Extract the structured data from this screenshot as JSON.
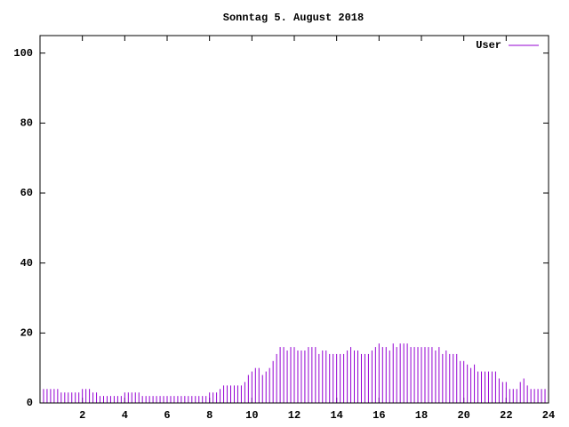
{
  "chart_data": {
    "type": "impulse",
    "title": "Sonntag 5. August 2018",
    "xlim": [
      0,
      24
    ],
    "xticks": [
      2,
      4,
      6,
      8,
      10,
      12,
      14,
      16,
      18,
      20,
      22,
      24
    ],
    "ylim": [
      0,
      105
    ],
    "yticks": [
      0,
      20,
      40,
      60,
      80,
      100
    ],
    "legend": "top-right",
    "series": [
      {
        "name": "User",
        "color": "#9400d3",
        "x": [
          0,
          0.167,
          0.333,
          0.5,
          0.667,
          0.833,
          1,
          1.167,
          1.333,
          1.5,
          1.667,
          1.833,
          2,
          2.167,
          2.333,
          2.5,
          2.667,
          2.833,
          3,
          3.167,
          3.333,
          3.5,
          3.667,
          3.833,
          4,
          4.167,
          4.333,
          4.5,
          4.667,
          4.833,
          5,
          5.167,
          5.333,
          5.5,
          5.667,
          5.833,
          6,
          6.167,
          6.333,
          6.5,
          6.667,
          6.833,
          7,
          7.167,
          7.333,
          7.5,
          7.667,
          7.833,
          8,
          8.167,
          8.333,
          8.5,
          8.667,
          8.833,
          9,
          9.167,
          9.333,
          9.5,
          9.667,
          9.833,
          10,
          10.167,
          10.333,
          10.5,
          10.667,
          10.833,
          11,
          11.167,
          11.333,
          11.5,
          11.667,
          11.833,
          12,
          12.167,
          12.333,
          12.5,
          12.667,
          12.833,
          13,
          13.167,
          13.333,
          13.5,
          13.667,
          13.833,
          14,
          14.167,
          14.333,
          14.5,
          14.667,
          14.833,
          15,
          15.167,
          15.333,
          15.5,
          15.667,
          15.833,
          16,
          16.167,
          16.333,
          16.5,
          16.667,
          16.833,
          17,
          17.167,
          17.333,
          17.5,
          17.667,
          17.833,
          18,
          18.167,
          18.333,
          18.5,
          18.667,
          18.833,
          19,
          19.167,
          19.333,
          19.5,
          19.667,
          19.833,
          20,
          20.167,
          20.333,
          20.5,
          20.667,
          20.833,
          21,
          21.167,
          21.333,
          21.5,
          21.667,
          21.833,
          22,
          22.167,
          22.333,
          22.5,
          22.667,
          22.833,
          23,
          23.167,
          23.333,
          23.5,
          23.667,
          23.833
        ],
        "values": [
          4,
          4,
          4,
          4,
          4,
          4,
          3,
          3,
          3,
          3,
          3,
          3,
          4,
          4,
          4,
          3,
          3,
          2,
          2,
          2,
          2,
          2,
          2,
          2,
          3,
          3,
          3,
          3,
          3,
          2,
          2,
          2,
          2,
          2,
          2,
          2,
          2,
          2,
          2,
          2,
          2,
          2,
          2,
          2,
          2,
          2,
          2,
          2,
          3,
          3,
          3,
          4,
          5,
          5,
          5,
          5,
          5,
          5,
          6,
          8,
          9,
          10,
          10,
          8,
          9,
          10,
          12,
          14,
          16,
          16,
          15,
          16,
          16,
          15,
          15,
          15,
          16,
          16,
          16,
          14,
          15,
          15,
          14,
          14,
          14,
          14,
          14,
          15,
          16,
          15,
          15,
          14,
          14,
          14,
          15,
          16,
          17,
          16,
          16,
          15,
          17,
          16,
          17,
          17,
          17,
          16,
          16,
          16,
          16,
          16,
          16,
          16,
          15,
          16,
          14,
          15,
          14,
          14,
          14,
          12,
          12,
          11,
          10,
          11,
          9,
          9,
          9,
          9,
          9,
          9,
          7,
          6,
          6,
          4,
          4,
          4,
          6,
          7,
          5,
          4,
          4,
          4,
          4,
          4
        ]
      }
    ]
  }
}
